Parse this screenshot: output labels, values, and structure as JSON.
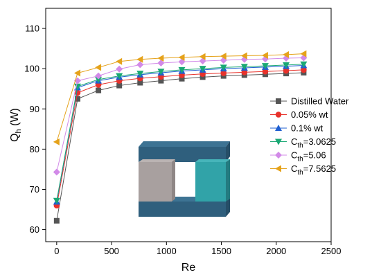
{
  "chart_data": {
    "type": "line",
    "xlabel": "Re",
    "ylabel_main": "Q",
    "ylabel_sub": "h",
    "ylabel_unit": " (W)",
    "xlim": [
      -100,
      2500
    ],
    "ylim": [
      57,
      115
    ],
    "xticks": [
      0,
      500,
      1000,
      1500,
      2000,
      2500
    ],
    "yticks": [
      60,
      70,
      80,
      90,
      100,
      110
    ],
    "grid": false,
    "legend_position": "right",
    "x": [
      0,
      190,
      380,
      570,
      760,
      950,
      1140,
      1330,
      1520,
      1710,
      1900,
      2090,
      2250
    ],
    "series": [
      {
        "name": "Distilled Water",
        "name_main": "Distilled Water",
        "name_sub": "",
        "name_rest": "",
        "marker": "square",
        "color": "#555555",
        "values": [
          62.2,
          92.5,
          94.6,
          95.8,
          96.5,
          97.0,
          97.5,
          97.9,
          98.2,
          98.4,
          98.6,
          98.8,
          99.0
        ]
      },
      {
        "name": "0.05% wt",
        "name_main": "0.05% wt",
        "name_sub": "",
        "name_rest": "",
        "marker": "circle",
        "color": "#e8322b",
        "values": [
          66.0,
          94.0,
          96.0,
          97.0,
          97.6,
          98.0,
          98.4,
          98.7,
          98.9,
          99.1,
          99.3,
          99.5,
          99.7
        ]
      },
      {
        "name": "0.1% wt",
        "name_main": "0.1% wt",
        "name_sub": "",
        "name_rest": "",
        "marker": "triangle-up",
        "color": "#1f5fd1",
        "values": [
          66.9,
          95.3,
          97.0,
          97.9,
          98.5,
          99.0,
          99.4,
          99.7,
          100.0,
          100.2,
          100.4,
          100.6,
          100.8
        ]
      },
      {
        "name": "Cth=3.0625",
        "name_main": "C",
        "name_sub": "th",
        "name_rest": "=3.0625",
        "marker": "triangle-down",
        "color": "#1aa874",
        "values": [
          67.2,
          95.6,
          97.3,
          98.2,
          98.8,
          99.3,
          99.7,
          100.0,
          100.3,
          100.5,
          100.7,
          100.9,
          101.1
        ]
      },
      {
        "name": "Cth=5.06",
        "name_main": "C",
        "name_sub": "th",
        "name_rest": "=5.06",
        "marker": "diamond",
        "color": "#d28ae8",
        "values": [
          74.3,
          97.0,
          98.2,
          99.9,
          101.0,
          101.4,
          101.7,
          101.9,
          102.1,
          102.3,
          102.4,
          102.6,
          102.7
        ]
      },
      {
        "name": "Cth=7.5625",
        "name_main": "C",
        "name_sub": "th",
        "name_rest": "=7.5625",
        "marker": "triangle-left",
        "color": "#e5a21a",
        "values": [
          81.8,
          98.9,
          100.3,
          101.8,
          102.3,
          102.6,
          102.8,
          103.0,
          103.1,
          103.2,
          103.3,
          103.5,
          103.7
        ]
      }
    ]
  },
  "inset": {
    "frame_color": "#2f5f7d",
    "left_block_color": "#a8a09f",
    "right_block_color": "#31a3a8"
  }
}
